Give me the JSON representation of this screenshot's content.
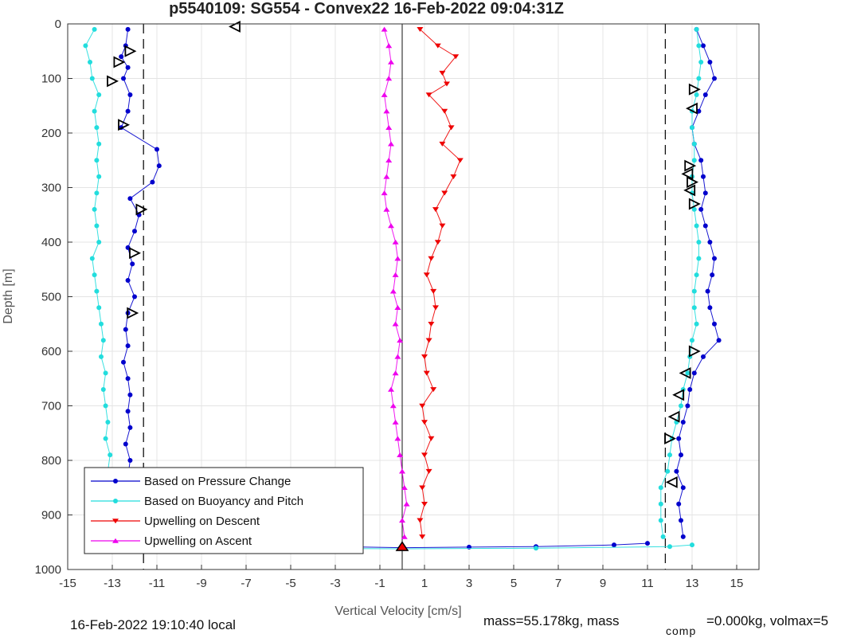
{
  "chart_data": {
    "type": "scatter",
    "title": "p5540109: SG554 - Convex22 16-Feb-2022 09:04:31Z",
    "xlabel": "Vertical Velocity [cm/s]",
    "ylabel": "Depth [m]",
    "xlim": [
      -15,
      16
    ],
    "ylim": [
      0,
      1000
    ],
    "y_reversed": true,
    "grid": true,
    "xticks": [
      -15,
      -13,
      -11,
      -9,
      -7,
      -5,
      -3,
      -1,
      1,
      3,
      5,
      7,
      9,
      11,
      13,
      15
    ],
    "yticks": [
      0,
      100,
      200,
      300,
      400,
      500,
      600,
      700,
      800,
      900,
      1000
    ],
    "legend_position": "bottom-left",
    "reference_lines": {
      "dashed_x": [
        -11.6,
        11.8
      ],
      "solid_x": [
        0
      ]
    },
    "series": [
      {
        "name": "Based on Pressure Change",
        "color": "#0000cc",
        "marker": "dot",
        "points": [
          [
            -12.3,
            10
          ],
          [
            -12.4,
            40
          ],
          [
            -12.6,
            60
          ],
          [
            -12.3,
            80
          ],
          [
            -12.5,
            100
          ],
          [
            -12.2,
            130
          ],
          [
            -12.3,
            160
          ],
          [
            -12.6,
            190
          ],
          [
            -11.0,
            230
          ],
          [
            -10.9,
            260
          ],
          [
            -11.2,
            290
          ],
          [
            -12.2,
            320
          ],
          [
            -11.8,
            350
          ],
          [
            -12.0,
            380
          ],
          [
            -12.3,
            410
          ],
          [
            -12.1,
            440
          ],
          [
            -12.3,
            470
          ],
          [
            -12.0,
            500
          ],
          [
            -12.3,
            530
          ],
          [
            -12.4,
            560
          ],
          [
            -12.3,
            590
          ],
          [
            -12.5,
            620
          ],
          [
            -12.3,
            650
          ],
          [
            -12.2,
            680
          ],
          [
            -12.3,
            710
          ],
          [
            -12.2,
            740
          ],
          [
            -12.4,
            770
          ],
          [
            -12.2,
            800
          ],
          [
            -12.3,
            830
          ],
          [
            -12.2,
            860
          ],
          [
            -12.4,
            890
          ],
          [
            -12.3,
            920
          ],
          [
            -12.3,
            950
          ],
          [
            13.2,
            10
          ],
          [
            13.5,
            40
          ],
          [
            13.8,
            70
          ],
          [
            14.0,
            100
          ],
          [
            13.6,
            130
          ],
          [
            13.3,
            160
          ],
          [
            13.0,
            190
          ],
          [
            13.1,
            220
          ],
          [
            13.4,
            250
          ],
          [
            13.5,
            280
          ],
          [
            13.6,
            310
          ],
          [
            13.4,
            340
          ],
          [
            13.6,
            370
          ],
          [
            13.8,
            400
          ],
          [
            14.0,
            430
          ],
          [
            13.9,
            460
          ],
          [
            13.7,
            490
          ],
          [
            13.8,
            520
          ],
          [
            14.0,
            550
          ],
          [
            14.2,
            580
          ],
          [
            13.5,
            610
          ],
          [
            13.1,
            640
          ],
          [
            12.9,
            670
          ],
          [
            12.8,
            700
          ],
          [
            12.6,
            730
          ],
          [
            12.4,
            760
          ],
          [
            12.5,
            790
          ],
          [
            12.3,
            820
          ],
          [
            12.6,
            850
          ],
          [
            12.4,
            880
          ],
          [
            12.5,
            910
          ],
          [
            12.6,
            940
          ],
          [
            -5.0,
            955
          ],
          [
            -3.0,
            958
          ],
          [
            0.0,
            960
          ],
          [
            3.0,
            959
          ],
          [
            6.0,
            958
          ],
          [
            9.5,
            955
          ],
          [
            11.0,
            952
          ]
        ]
      },
      {
        "name": "Based on Buoyancy and Pitch",
        "color": "#22dddd",
        "marker": "line-dot",
        "points": [
          [
            -13.8,
            10
          ],
          [
            -14.2,
            40
          ],
          [
            -14.0,
            70
          ],
          [
            -13.9,
            100
          ],
          [
            -13.6,
            130
          ],
          [
            -13.8,
            160
          ],
          [
            -13.7,
            190
          ],
          [
            -13.6,
            220
          ],
          [
            -13.7,
            250
          ],
          [
            -13.6,
            280
          ],
          [
            -13.7,
            310
          ],
          [
            -13.8,
            340
          ],
          [
            -13.7,
            370
          ],
          [
            -13.6,
            400
          ],
          [
            -13.9,
            430
          ],
          [
            -13.8,
            460
          ],
          [
            -13.7,
            490
          ],
          [
            -13.6,
            520
          ],
          [
            -13.5,
            550
          ],
          [
            -13.4,
            580
          ],
          [
            -13.5,
            610
          ],
          [
            -13.3,
            640
          ],
          [
            -13.4,
            670
          ],
          [
            -13.3,
            700
          ],
          [
            -13.2,
            730
          ],
          [
            -13.3,
            760
          ],
          [
            -13.1,
            790
          ],
          [
            -13.2,
            820
          ],
          [
            -13.1,
            850
          ],
          [
            -13.2,
            880
          ],
          [
            -13.1,
            910
          ],
          [
            -13.0,
            940
          ],
          [
            13.2,
            10
          ],
          [
            13.3,
            40
          ],
          [
            13.4,
            70
          ],
          [
            13.3,
            100
          ],
          [
            13.2,
            130
          ],
          [
            13.0,
            160
          ],
          [
            13.0,
            190
          ],
          [
            13.1,
            220
          ],
          [
            13.1,
            250
          ],
          [
            13.0,
            280
          ],
          [
            13.0,
            310
          ],
          [
            13.1,
            340
          ],
          [
            13.2,
            370
          ],
          [
            13.3,
            400
          ],
          [
            13.3,
            430
          ],
          [
            13.2,
            460
          ],
          [
            13.1,
            490
          ],
          [
            13.1,
            520
          ],
          [
            13.2,
            550
          ],
          [
            13.0,
            580
          ],
          [
            12.9,
            610
          ],
          [
            12.8,
            640
          ],
          [
            12.6,
            670
          ],
          [
            12.5,
            700
          ],
          [
            12.3,
            730
          ],
          [
            12.1,
            760
          ],
          [
            12.0,
            790
          ],
          [
            11.9,
            820
          ],
          [
            11.6,
            850
          ],
          [
            11.6,
            880
          ],
          [
            11.6,
            910
          ],
          [
            11.7,
            940
          ],
          [
            -13.5,
            960
          ],
          [
            -6.0,
            961
          ],
          [
            0.0,
            962
          ],
          [
            6.0,
            961
          ],
          [
            12.0,
            958
          ],
          [
            13.0,
            955
          ]
        ]
      },
      {
        "name": "Upwelling on Descent",
        "color": "#ee0000",
        "marker": "triangle-down",
        "points": [
          [
            0.8,
            10
          ],
          [
            1.6,
            40
          ],
          [
            2.4,
            60
          ],
          [
            1.8,
            90
          ],
          [
            2.0,
            110
          ],
          [
            1.2,
            130
          ],
          [
            1.9,
            160
          ],
          [
            2.2,
            190
          ],
          [
            1.8,
            220
          ],
          [
            2.6,
            250
          ],
          [
            2.3,
            280
          ],
          [
            1.9,
            310
          ],
          [
            1.5,
            340
          ],
          [
            1.8,
            370
          ],
          [
            1.6,
            400
          ],
          [
            1.3,
            430
          ],
          [
            1.1,
            460
          ],
          [
            1.4,
            490
          ],
          [
            1.5,
            520
          ],
          [
            1.3,
            550
          ],
          [
            1.2,
            580
          ],
          [
            1.0,
            610
          ],
          [
            1.1,
            640
          ],
          [
            1.4,
            670
          ],
          [
            0.9,
            700
          ],
          [
            1.0,
            730
          ],
          [
            1.3,
            760
          ],
          [
            1.0,
            790
          ],
          [
            1.2,
            820
          ],
          [
            0.9,
            850
          ],
          [
            1.0,
            880
          ],
          [
            0.8,
            910
          ],
          [
            0.9,
            940
          ]
        ]
      },
      {
        "name": "Upwelling on Ascent",
        "color": "#ee00ee",
        "marker": "triangle-up",
        "points": [
          [
            -0.8,
            10
          ],
          [
            -0.6,
            40
          ],
          [
            -0.5,
            70
          ],
          [
            -0.6,
            100
          ],
          [
            -0.8,
            130
          ],
          [
            -0.7,
            160
          ],
          [
            -0.6,
            190
          ],
          [
            -0.5,
            220
          ],
          [
            -0.6,
            250
          ],
          [
            -0.7,
            280
          ],
          [
            -0.8,
            310
          ],
          [
            -0.7,
            340
          ],
          [
            -0.5,
            370
          ],
          [
            -0.3,
            400
          ],
          [
            -0.2,
            430
          ],
          [
            -0.3,
            460
          ],
          [
            -0.4,
            490
          ],
          [
            -0.2,
            520
          ],
          [
            -0.3,
            550
          ],
          [
            -0.1,
            580
          ],
          [
            -0.2,
            610
          ],
          [
            -0.3,
            640
          ],
          [
            -0.5,
            670
          ],
          [
            -0.4,
            700
          ],
          [
            -0.3,
            730
          ],
          [
            -0.2,
            760
          ],
          [
            -0.1,
            790
          ],
          [
            0.0,
            820
          ],
          [
            0.1,
            850
          ],
          [
            0.2,
            880
          ],
          [
            0.0,
            910
          ],
          [
            0.1,
            940
          ]
        ]
      }
    ],
    "event_markers": {
      "color": "#000000",
      "points": [
        {
          "x": -7.5,
          "y": 5,
          "dir": "left"
        },
        {
          "x": -12.2,
          "y": 50,
          "dir": "right"
        },
        {
          "x": -12.7,
          "y": 70,
          "dir": "right"
        },
        {
          "x": -13.0,
          "y": 105,
          "dir": "right"
        },
        {
          "x": -12.5,
          "y": 185,
          "dir": "right"
        },
        {
          "x": -11.7,
          "y": 340,
          "dir": "right"
        },
        {
          "x": -12.0,
          "y": 420,
          "dir": "right"
        },
        {
          "x": -12.1,
          "y": 530,
          "dir": "right"
        },
        {
          "x": 13.1,
          "y": 120,
          "dir": "right"
        },
        {
          "x": 13.0,
          "y": 155,
          "dir": "left"
        },
        {
          "x": 12.9,
          "y": 260,
          "dir": "right"
        },
        {
          "x": 12.8,
          "y": 275,
          "dir": "left"
        },
        {
          "x": 13.0,
          "y": 290,
          "dir": "right"
        },
        {
          "x": 12.9,
          "y": 305,
          "dir": "left"
        },
        {
          "x": 13.1,
          "y": 330,
          "dir": "right"
        },
        {
          "x": 13.1,
          "y": 600,
          "dir": "right"
        },
        {
          "x": 12.7,
          "y": 640,
          "dir": "left"
        },
        {
          "x": 12.4,
          "y": 680,
          "dir": "left"
        },
        {
          "x": 12.2,
          "y": 720,
          "dir": "left"
        },
        {
          "x": 12.0,
          "y": 760,
          "dir": "right"
        },
        {
          "x": 12.1,
          "y": 840,
          "dir": "left"
        },
        {
          "x": -12.3,
          "y": 955,
          "dir": "right"
        }
      ],
      "apogee": {
        "x": 0.0,
        "y": 958,
        "color": "#ee0000"
      }
    },
    "footer_left": "16-Feb-2022 19:10:40 local",
    "footer_right_a": "mass=55.178kg, mass",
    "footer_right_sub": "comp",
    "footer_right_b": "=0.000kg, volmax=5"
  }
}
